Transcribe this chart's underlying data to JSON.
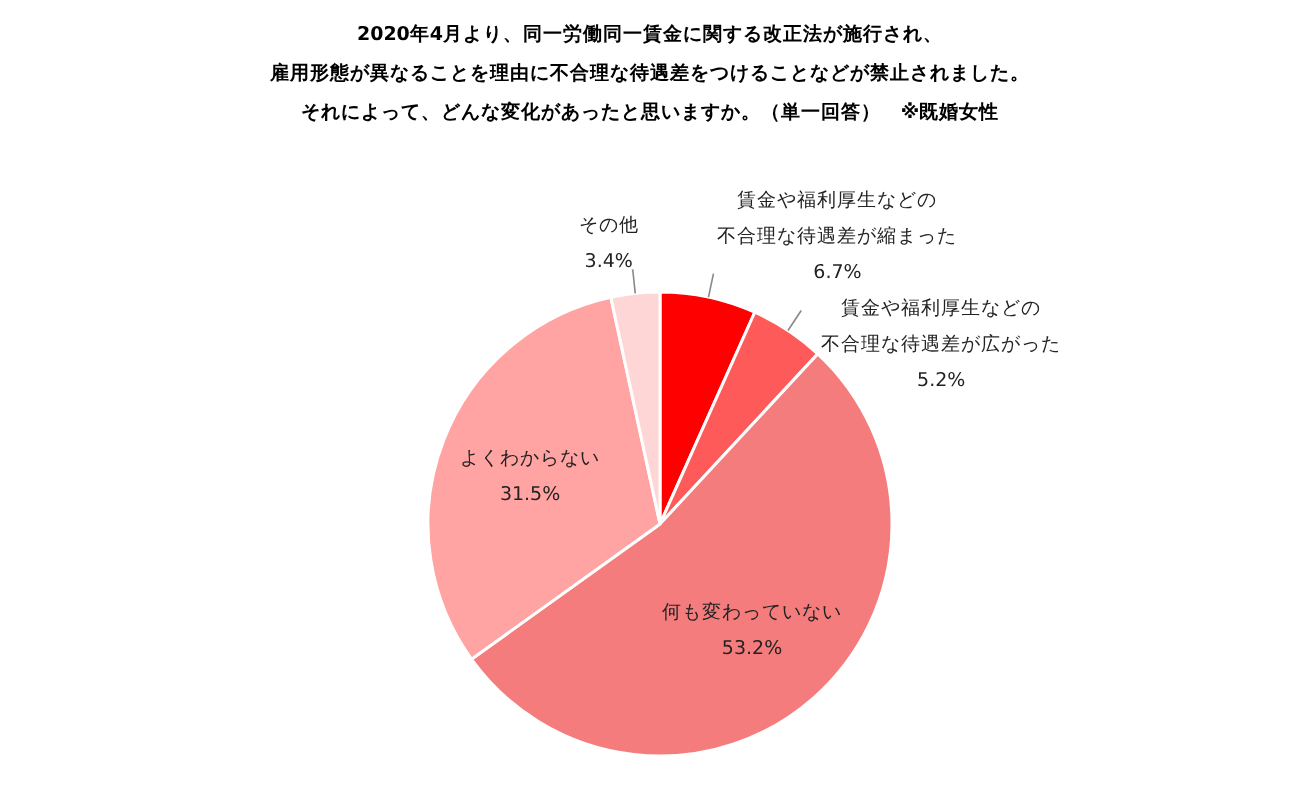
{
  "chart_data": {
    "type": "pie",
    "title": "2020年4月より、同一労働同一賃金に関する改正法が施行され、雇用形態が異なることを理由に不合理な待遇差をつけることなどが禁止されました。それによって、どんな変化があったと思いますか。（単一回答）　※既婚女性",
    "categories": [
      "賃金や福利厚生などの不合理な待遇差が縮まった",
      "賃金や福利厚生などの不合理な待遇差が広がった",
      "何も変わっていない",
      "よくわからない",
      "その他"
    ],
    "values": [
      6.7,
      5.2,
      53.2,
      31.5,
      3.4
    ],
    "value_labels": [
      "6.7%",
      "5.2%",
      "53.2%",
      "31.5%",
      "3.4%"
    ],
    "colors": [
      "#ff0000",
      "#ff5a5a",
      "#f47c7c",
      "#ffa3a3",
      "#ffd6d6"
    ]
  }
}
